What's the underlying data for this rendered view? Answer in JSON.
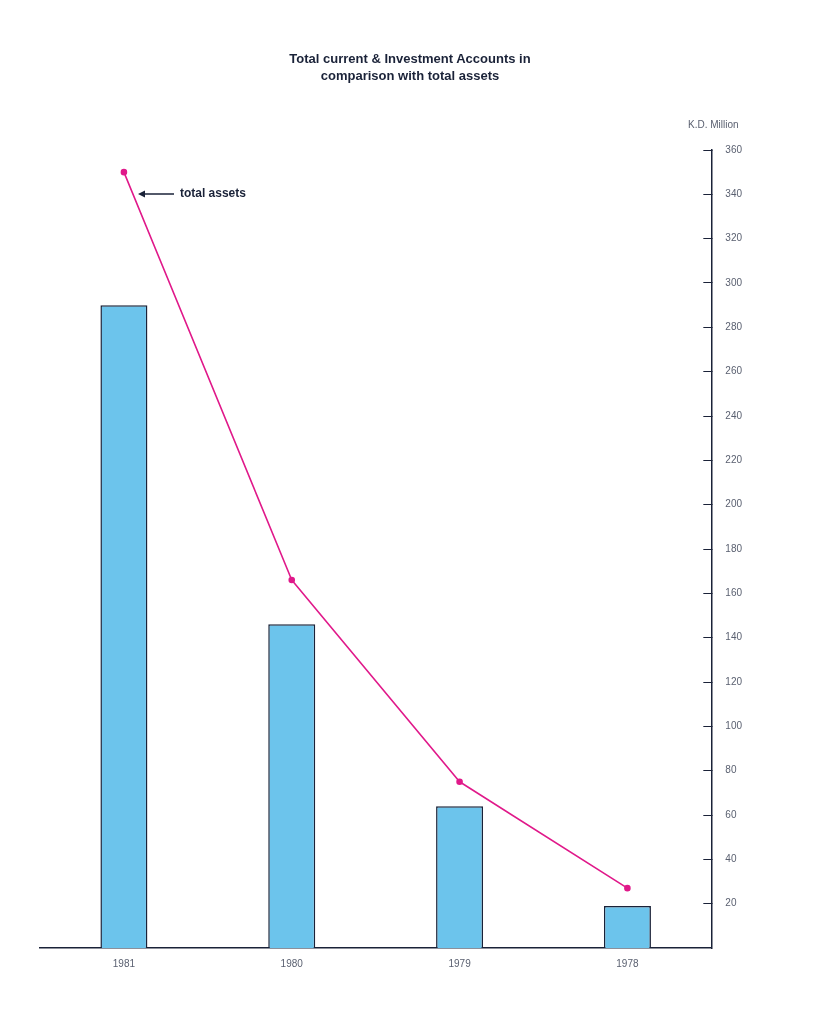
{
  "chart_data": {
    "type": "bar",
    "title": "Total current & Investment Accounts in comparison with total assets",
    "ylabel": "K.D. Million",
    "categories": [
      "1981",
      "1980",
      "1979",
      "1978"
    ],
    "series": [
      {
        "color": "#6cc4ec",
        "values": [
          290,
          146,
          64,
          19
        ]
      },
      {
        "type": "line",
        "name": "total assets",
        "color": "#e0198a",
        "values": [
          350,
          166,
          75,
          27
        ],
        "marker": "circle"
      }
    ],
    "ylim": [
      0,
      360
    ],
    "yticks": [
      20,
      40,
      60,
      80,
      100,
      120,
      140,
      160,
      180,
      200,
      220,
      240,
      260,
      280,
      300,
      320,
      340,
      360
    ],
    "grid": false,
    "legend": false
  }
}
